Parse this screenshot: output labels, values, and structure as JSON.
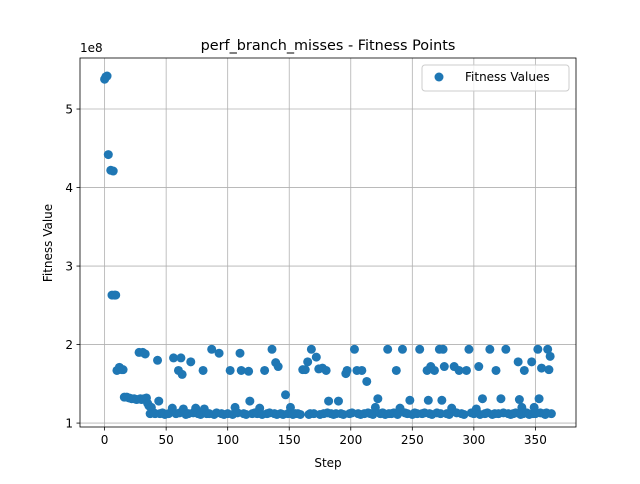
{
  "chart_data": {
    "type": "scatter",
    "title": "perf_branch_misses - Fitness Points",
    "xlabel": "Step",
    "ylabel": "Fitness Value",
    "y_offset_label": "1e8",
    "y_scale_factor": 100000000,
    "xlim": [
      -20,
      383
    ],
    "ylim": [
      95000000,
      565000000
    ],
    "x_ticks": [
      0,
      50,
      100,
      150,
      200,
      250,
      300,
      350
    ],
    "x_tick_labels": [
      "0",
      "50",
      "100",
      "150",
      "200",
      "250",
      "300",
      "350"
    ],
    "y_ticks": [
      100000000,
      200000000,
      300000000,
      400000000,
      500000000
    ],
    "y_tick_labels": [
      "1",
      "2",
      "3",
      "4",
      "5"
    ],
    "grid": true,
    "legend": {
      "position": "top-right",
      "entries": [
        "Fitness Values"
      ]
    },
    "colors": {
      "series": "#1f77b4"
    },
    "series": [
      {
        "name": "Fitness Values",
        "points": [
          [
            0,
            538000000
          ],
          [
            1,
            541000000
          ],
          [
            2,
            542000000
          ],
          [
            3,
            442000000
          ],
          [
            5,
            422000000
          ],
          [
            7,
            421000000
          ],
          [
            6,
            263000000
          ],
          [
            8,
            263000000
          ],
          [
            9,
            263000000
          ],
          [
            10,
            167000000
          ],
          [
            12,
            171000000
          ],
          [
            14,
            168000000
          ],
          [
            15,
            168000000
          ],
          [
            16,
            133000000
          ],
          [
            18,
            133000000
          ],
          [
            20,
            132000000
          ],
          [
            22,
            131000000
          ],
          [
            24,
            131000000
          ],
          [
            26,
            130000000
          ],
          [
            28,
            190000000
          ],
          [
            29,
            131000000
          ],
          [
            30,
            130000000
          ],
          [
            31,
            190000000
          ],
          [
            32,
            131000000
          ],
          [
            33,
            188000000
          ],
          [
            34,
            132000000
          ],
          [
            35,
            125000000
          ],
          [
            36,
            122000000
          ],
          [
            37,
            112000000
          ],
          [
            38,
            120000000
          ],
          [
            40,
            113000000
          ],
          [
            41,
            112000000
          ],
          [
            43,
            180000000
          ],
          [
            44,
            128000000
          ],
          [
            45,
            112000000
          ],
          [
            47,
            113000000
          ],
          [
            49,
            111000000
          ],
          [
            52,
            112000000
          ],
          [
            55,
            119000000
          ],
          [
            56,
            183000000
          ],
          [
            58,
            112000000
          ],
          [
            60,
            167000000
          ],
          [
            61,
            113000000
          ],
          [
            62,
            183000000
          ],
          [
            63,
            162000000
          ],
          [
            64,
            118000000
          ],
          [
            66,
            111000000
          ],
          [
            68,
            112000000
          ],
          [
            70,
            178000000
          ],
          [
            72,
            113000000
          ],
          [
            74,
            119000000
          ],
          [
            76,
            112000000
          ],
          [
            78,
            111000000
          ],
          [
            80,
            167000000
          ],
          [
            81,
            118000000
          ],
          [
            83,
            112000000
          ],
          [
            85,
            112000000
          ],
          [
            87,
            194000000
          ],
          [
            89,
            111000000
          ],
          [
            91,
            113000000
          ],
          [
            93,
            189000000
          ],
          [
            95,
            112000000
          ],
          [
            97,
            111000000
          ],
          [
            100,
            112000000
          ],
          [
            102,
            167000000
          ],
          [
            104,
            111000000
          ],
          [
            106,
            120000000
          ],
          [
            108,
            113000000
          ],
          [
            110,
            189000000
          ],
          [
            111,
            167000000
          ],
          [
            113,
            112000000
          ],
          [
            115,
            111000000
          ],
          [
            117,
            166000000
          ],
          [
            118,
            128000000
          ],
          [
            120,
            112000000
          ],
          [
            122,
            113000000
          ],
          [
            124,
            112000000
          ],
          [
            126,
            119000000
          ],
          [
            128,
            111000000
          ],
          [
            130,
            167000000
          ],
          [
            132,
            112000000
          ],
          [
            134,
            113000000
          ],
          [
            136,
            194000000
          ],
          [
            138,
            112000000
          ],
          [
            139,
            177000000
          ],
          [
            140,
            111000000
          ],
          [
            141,
            172000000
          ],
          [
            143,
            112000000
          ],
          [
            145,
            111000000
          ],
          [
            147,
            136000000
          ],
          [
            149,
            112000000
          ],
          [
            151,
            120000000
          ],
          [
            153,
            111000000
          ],
          [
            155,
            112000000
          ],
          [
            157,
            112000000
          ],
          [
            159,
            111000000
          ],
          [
            161,
            168000000
          ],
          [
            163,
            168000000
          ],
          [
            165,
            178000000
          ],
          [
            166,
            111000000
          ],
          [
            167,
            112000000
          ],
          [
            168,
            194000000
          ],
          [
            170,
            112000000
          ],
          [
            172,
            184000000
          ],
          [
            174,
            169000000
          ],
          [
            175,
            111000000
          ],
          [
            177,
            170000000
          ],
          [
            178,
            112000000
          ],
          [
            180,
            167000000
          ],
          [
            181,
            113000000
          ],
          [
            182,
            128000000
          ],
          [
            184,
            112000000
          ],
          [
            186,
            111000000
          ],
          [
            188,
            112000000
          ],
          [
            190,
            128000000
          ],
          [
            192,
            112000000
          ],
          [
            194,
            111000000
          ],
          [
            196,
            163000000
          ],
          [
            197,
            167000000
          ],
          [
            199,
            112000000
          ],
          [
            201,
            113000000
          ],
          [
            203,
            194000000
          ],
          [
            205,
            167000000
          ],
          [
            206,
            112000000
          ],
          [
            208,
            111000000
          ],
          [
            209,
            167000000
          ],
          [
            211,
            112000000
          ],
          [
            213,
            153000000
          ],
          [
            214,
            113000000
          ],
          [
            216,
            112000000
          ],
          [
            218,
            111000000
          ],
          [
            220,
            120000000
          ],
          [
            222,
            131000000
          ],
          [
            224,
            112000000
          ],
          [
            226,
            113000000
          ],
          [
            228,
            111000000
          ],
          [
            230,
            194000000
          ],
          [
            231,
            112000000
          ],
          [
            233,
            112000000
          ],
          [
            235,
            113000000
          ],
          [
            237,
            167000000
          ],
          [
            238,
            111000000
          ],
          [
            240,
            119000000
          ],
          [
            242,
            194000000
          ],
          [
            244,
            113000000
          ],
          [
            246,
            112000000
          ],
          [
            248,
            129000000
          ],
          [
            250,
            111000000
          ],
          [
            252,
            113000000
          ],
          [
            254,
            112000000
          ],
          [
            256,
            194000000
          ],
          [
            258,
            112000000
          ],
          [
            260,
            113000000
          ],
          [
            262,
            167000000
          ],
          [
            263,
            129000000
          ],
          [
            264,
            112000000
          ],
          [
            265,
            172000000
          ],
          [
            266,
            111000000
          ],
          [
            268,
            167000000
          ],
          [
            270,
            113000000
          ],
          [
            272,
            194000000
          ],
          [
            273,
            112000000
          ],
          [
            274,
            129000000
          ],
          [
            275,
            194000000
          ],
          [
            276,
            172000000
          ],
          [
            278,
            112000000
          ],
          [
            280,
            111000000
          ],
          [
            282,
            119000000
          ],
          [
            284,
            172000000
          ],
          [
            286,
            113000000
          ],
          [
            288,
            167000000
          ],
          [
            290,
            112000000
          ],
          [
            292,
            111000000
          ],
          [
            294,
            167000000
          ],
          [
            296,
            194000000
          ],
          [
            298,
            113000000
          ],
          [
            300,
            112000000
          ],
          [
            302,
            118000000
          ],
          [
            304,
            172000000
          ],
          [
            305,
            111000000
          ],
          [
            307,
            131000000
          ],
          [
            309,
            112000000
          ],
          [
            311,
            113000000
          ],
          [
            313,
            194000000
          ],
          [
            315,
            111000000
          ],
          [
            317,
            112000000
          ],
          [
            318,
            167000000
          ],
          [
            320,
            112000000
          ],
          [
            322,
            131000000
          ],
          [
            324,
            113000000
          ],
          [
            326,
            194000000
          ],
          [
            328,
            112000000
          ],
          [
            330,
            111000000
          ],
          [
            332,
            112000000
          ],
          [
            334,
            113000000
          ],
          [
            336,
            178000000
          ],
          [
            337,
            130000000
          ],
          [
            338,
            111000000
          ],
          [
            339,
            120000000
          ],
          [
            340,
            112000000
          ],
          [
            341,
            167000000
          ],
          [
            343,
            113000000
          ],
          [
            345,
            111000000
          ],
          [
            347,
            178000000
          ],
          [
            348,
            112000000
          ],
          [
            349,
            120000000
          ],
          [
            350,
            112000000
          ],
          [
            352,
            194000000
          ],
          [
            353,
            131000000
          ],
          [
            354,
            113000000
          ],
          [
            355,
            170000000
          ],
          [
            357,
            112000000
          ],
          [
            358,
            111000000
          ],
          [
            359,
            113000000
          ],
          [
            360,
            194000000
          ],
          [
            361,
            168000000
          ],
          [
            362,
            185000000
          ],
          [
            363,
            112000000
          ]
        ]
      }
    ]
  }
}
